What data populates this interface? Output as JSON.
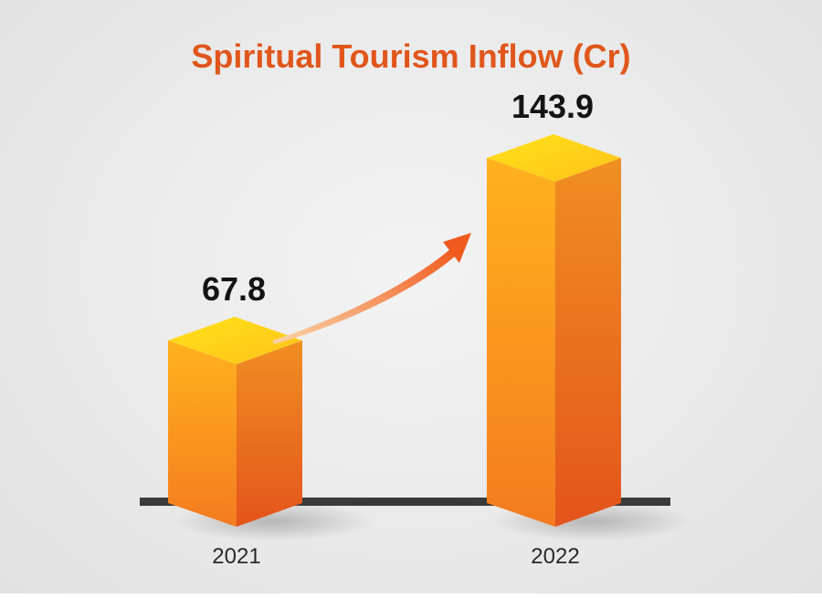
{
  "chart_data": {
    "type": "bar",
    "title": "Spiritual Tourism Inflow (Cr)",
    "categories": [
      "2021",
      "2022"
    ],
    "values": [
      67.8,
      143.9
    ],
    "value_labels": [
      "67.8",
      "143.9"
    ],
    "xlabel": "",
    "ylabel": "",
    "ylim": [
      0,
      143.9
    ],
    "grid": false,
    "legend": "none",
    "style": "3d-blocks",
    "trend_arrow": true
  },
  "colors": {
    "title": "#e0561b",
    "bar_top_light": "#ffe21a",
    "bar_top_dark": "#ffc21a",
    "bar_front_top": "#ffb21d",
    "bar_front_bottom": "#f47b1f",
    "bar_side_top": "#f08f22",
    "bar_side_bottom": "#e4541c",
    "arrow_start": "#fbd4a8",
    "arrow_end": "#f05a1e",
    "baseline": "#3a3a3a",
    "value_text": "#141414",
    "category_text": "#2a2a2a"
  }
}
